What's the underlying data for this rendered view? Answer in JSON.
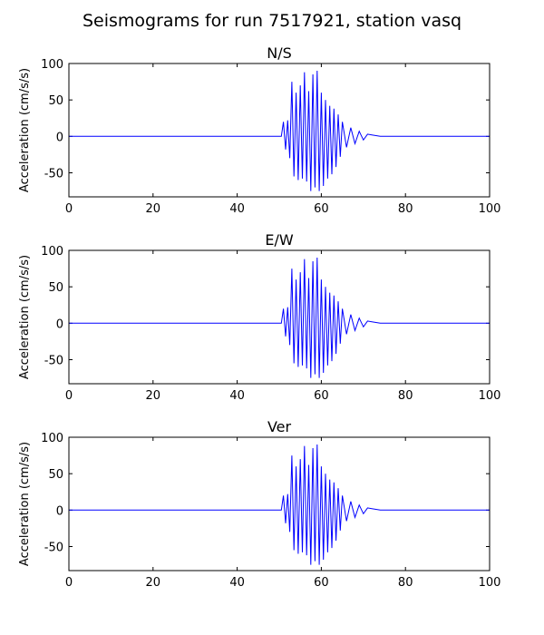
{
  "figure_title": "Seismograms for run 7517921, station vasq",
  "chart_data": [
    {
      "type": "line",
      "title": "N/S",
      "ylabel": "Acceleration (cm/s/s)",
      "xlabel": "",
      "xlim": [
        0,
        100
      ],
      "ylim": [
        -83,
        100
      ],
      "xticks": [
        0,
        20,
        40,
        60,
        80,
        100
      ],
      "yticks": [
        -50,
        0,
        50,
        100
      ],
      "grid": false,
      "line_color": "#0000ff",
      "series": [
        {
          "x": [
            0,
            50.5,
            51.0,
            51.5,
            52.0,
            52.5,
            53.0,
            53.5,
            54.0,
            54.5,
            55.0,
            55.5,
            56.0,
            56.5,
            57.0,
            57.5,
            58.0,
            58.5,
            59.0,
            59.5,
            60.0,
            60.5,
            61.0,
            61.5,
            62.0,
            62.5,
            63.0,
            63.5,
            64.0,
            64.5,
            65.0,
            66.0,
            67.0,
            68.0,
            69.0,
            70.0,
            71.0,
            72.0,
            74.0,
            100
          ],
          "values": [
            0,
            0,
            20,
            -18,
            22,
            -30,
            75,
            -55,
            60,
            -60,
            70,
            -58,
            88,
            -62,
            62,
            -75,
            85,
            -70,
            90,
            -75,
            60,
            -68,
            50,
            -58,
            42,
            -52,
            38,
            -42,
            30,
            -28,
            20,
            -15,
            12,
            -10,
            7,
            -5,
            3,
            2,
            0,
            0
          ]
        }
      ]
    },
    {
      "type": "line",
      "title": "E/W",
      "ylabel": "Acceleration (cm/s/s)",
      "xlabel": "",
      "xlim": [
        0,
        100
      ],
      "ylim": [
        -83,
        100
      ],
      "xticks": [
        0,
        20,
        40,
        60,
        80,
        100
      ],
      "yticks": [
        -50,
        0,
        50,
        100
      ],
      "grid": false,
      "line_color": "#0000ff",
      "series": [
        {
          "x": [
            0,
            50.5,
            51.0,
            51.5,
            52.0,
            52.5,
            53.0,
            53.5,
            54.0,
            54.5,
            55.0,
            55.5,
            56.0,
            56.5,
            57.0,
            57.5,
            58.0,
            58.5,
            59.0,
            59.5,
            60.0,
            60.5,
            61.0,
            61.5,
            62.0,
            62.5,
            63.0,
            63.5,
            64.0,
            64.5,
            65.0,
            66.0,
            67.0,
            68.0,
            69.0,
            70.0,
            71.0,
            72.0,
            74.0,
            100
          ],
          "values": [
            0,
            0,
            20,
            -18,
            22,
            -30,
            75,
            -55,
            60,
            -60,
            70,
            -58,
            88,
            -62,
            62,
            -75,
            85,
            -70,
            90,
            -75,
            60,
            -68,
            50,
            -58,
            42,
            -52,
            38,
            -42,
            30,
            -28,
            20,
            -15,
            12,
            -10,
            7,
            -5,
            3,
            2,
            0,
            0
          ]
        }
      ]
    },
    {
      "type": "line",
      "title": "Ver",
      "ylabel": "Acceleration (cm/s/s)",
      "xlabel": "",
      "xlim": [
        0,
        100
      ],
      "ylim": [
        -83,
        100
      ],
      "xticks": [
        0,
        20,
        40,
        60,
        80,
        100
      ],
      "yticks": [
        -50,
        0,
        50,
        100
      ],
      "grid": false,
      "line_color": "#0000ff",
      "series": [
        {
          "x": [
            0,
            50.5,
            51.0,
            51.5,
            52.0,
            52.5,
            53.0,
            53.5,
            54.0,
            54.5,
            55.0,
            55.5,
            56.0,
            56.5,
            57.0,
            57.5,
            58.0,
            58.5,
            59.0,
            59.5,
            60.0,
            60.5,
            61.0,
            61.5,
            62.0,
            62.5,
            63.0,
            63.5,
            64.0,
            64.5,
            65.0,
            66.0,
            67.0,
            68.0,
            69.0,
            70.0,
            71.0,
            72.0,
            74.0,
            100
          ],
          "values": [
            0,
            0,
            20,
            -18,
            22,
            -30,
            75,
            -55,
            60,
            -60,
            70,
            -58,
            88,
            -62,
            62,
            -75,
            85,
            -70,
            90,
            -75,
            60,
            -68,
            50,
            -58,
            42,
            -52,
            38,
            -42,
            30,
            -28,
            20,
            -15,
            12,
            -10,
            7,
            -5,
            3,
            2,
            0,
            0
          ]
        }
      ]
    }
  ]
}
